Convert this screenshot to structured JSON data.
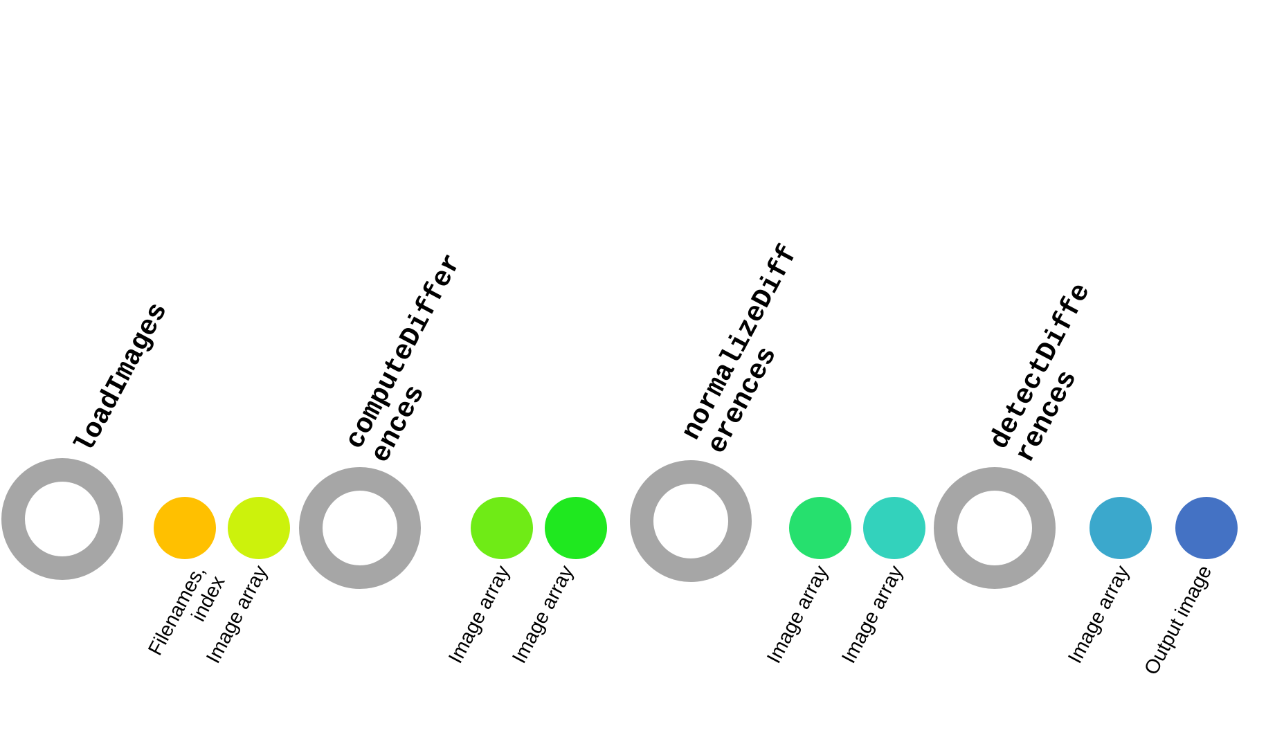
{
  "functions": [
    {
      "name": "loadImages",
      "inputs": [
        {
          "label": "Filenames,\nindex",
          "color": "#FFC000"
        },
        {
          "label": "Image array",
          "color": "#CCF20C"
        }
      ]
    },
    {
      "name": "computeDiffer\nences",
      "inputs": [
        {
          "label": "Image array",
          "color": "#6FEB16"
        },
        {
          "label": "Image array",
          "color": "#1FE81F"
        }
      ]
    },
    {
      "name": "normalizeDiff\nerences",
      "inputs": [
        {
          "label": "Image array",
          "color": "#26E06E"
        },
        {
          "label": "Image array",
          "color": "#33D2BC"
        }
      ]
    },
    {
      "name": "detectDiffe\nrences",
      "inputs": [
        {
          "label": "Image array",
          "color": "#3BA8CC"
        },
        {
          "label": "Output image",
          "color": "#4472C4"
        }
      ]
    }
  ],
  "ring_color": "#A6A6A6"
}
